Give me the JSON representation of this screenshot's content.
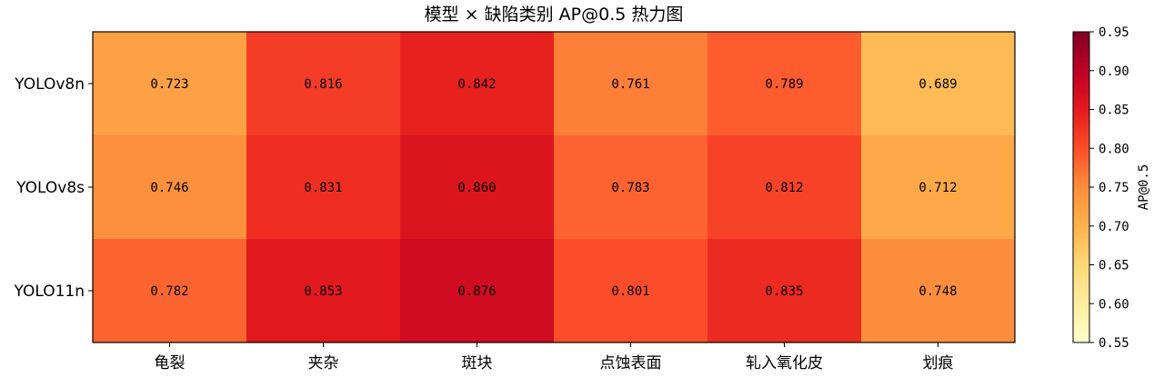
{
  "chart_data": {
    "type": "heatmap",
    "title": "模型 × 缺陷类别 AP@0.5 热力图",
    "rows": [
      "YOLOv8n",
      "YOLOv8s",
      "YOLO11n"
    ],
    "columns": [
      "龟裂",
      "夹杂",
      "斑块",
      "点蚀表面",
      "轧入氧化皮",
      "划痕"
    ],
    "values": [
      [
        0.723,
        0.816,
        0.842,
        0.761,
        0.789,
        0.689
      ],
      [
        0.746,
        0.831,
        0.86,
        0.783,
        0.812,
        0.712
      ],
      [
        0.782,
        0.853,
        0.876,
        0.801,
        0.835,
        0.748
      ]
    ],
    "value_labels": [
      [
        "0.723",
        "0.816",
        "0.842",
        "0.761",
        "0.789",
        "0.689"
      ],
      [
        "0.746",
        "0.831",
        "0.860",
        "0.783",
        "0.812",
        "0.712"
      ],
      [
        "0.782",
        "0.853",
        "0.876",
        "0.801",
        "0.835",
        "0.748"
      ]
    ],
    "colormap": "YlOrRd",
    "colorbar": {
      "label": "AP@0.5",
      "range": [
        0.55,
        0.95
      ],
      "ticks": [
        "0.55",
        "0.60",
        "0.65",
        "0.70",
        "0.75",
        "0.80",
        "0.85",
        "0.90",
        "0.95"
      ]
    }
  }
}
